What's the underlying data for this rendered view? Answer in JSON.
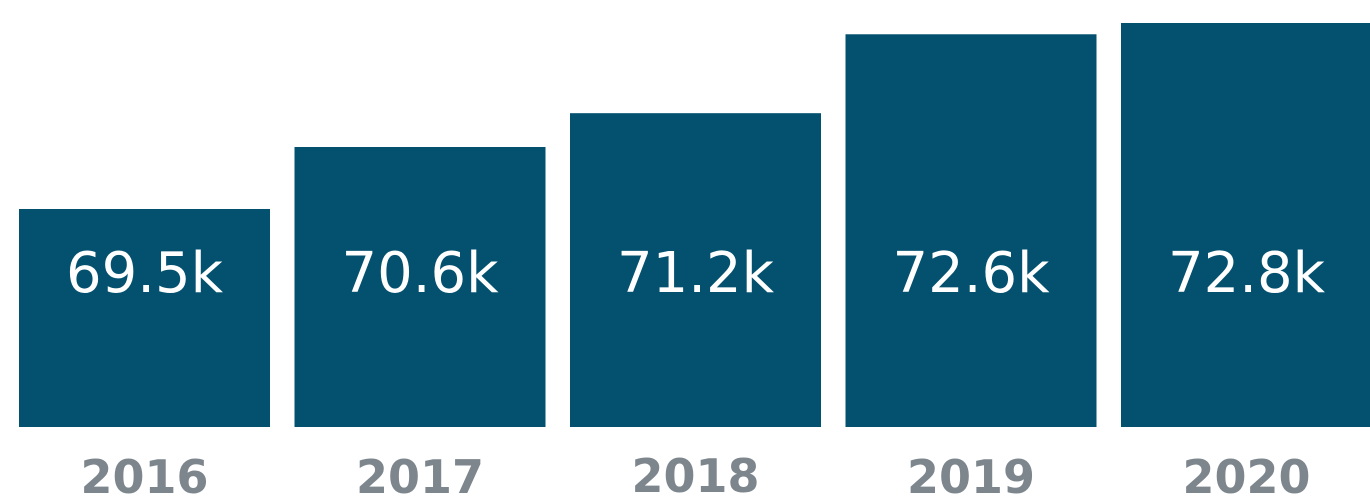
{
  "chart_data": {
    "type": "bar",
    "categories": [
      "2016",
      "2017",
      "2018",
      "2019",
      "2020"
    ],
    "values": [
      69.5,
      70.6,
      71.2,
      72.6,
      72.8
    ],
    "data_labels": [
      "69.5k",
      "70.6k",
      "71.2k",
      "72.6k",
      "72.8k"
    ],
    "title": "",
    "xlabel": "",
    "ylabel": "",
    "grid": false,
    "legend": "none",
    "bar_color": "#03506f",
    "label_color": "#ffffff",
    "category_color": "#7d868d"
  }
}
